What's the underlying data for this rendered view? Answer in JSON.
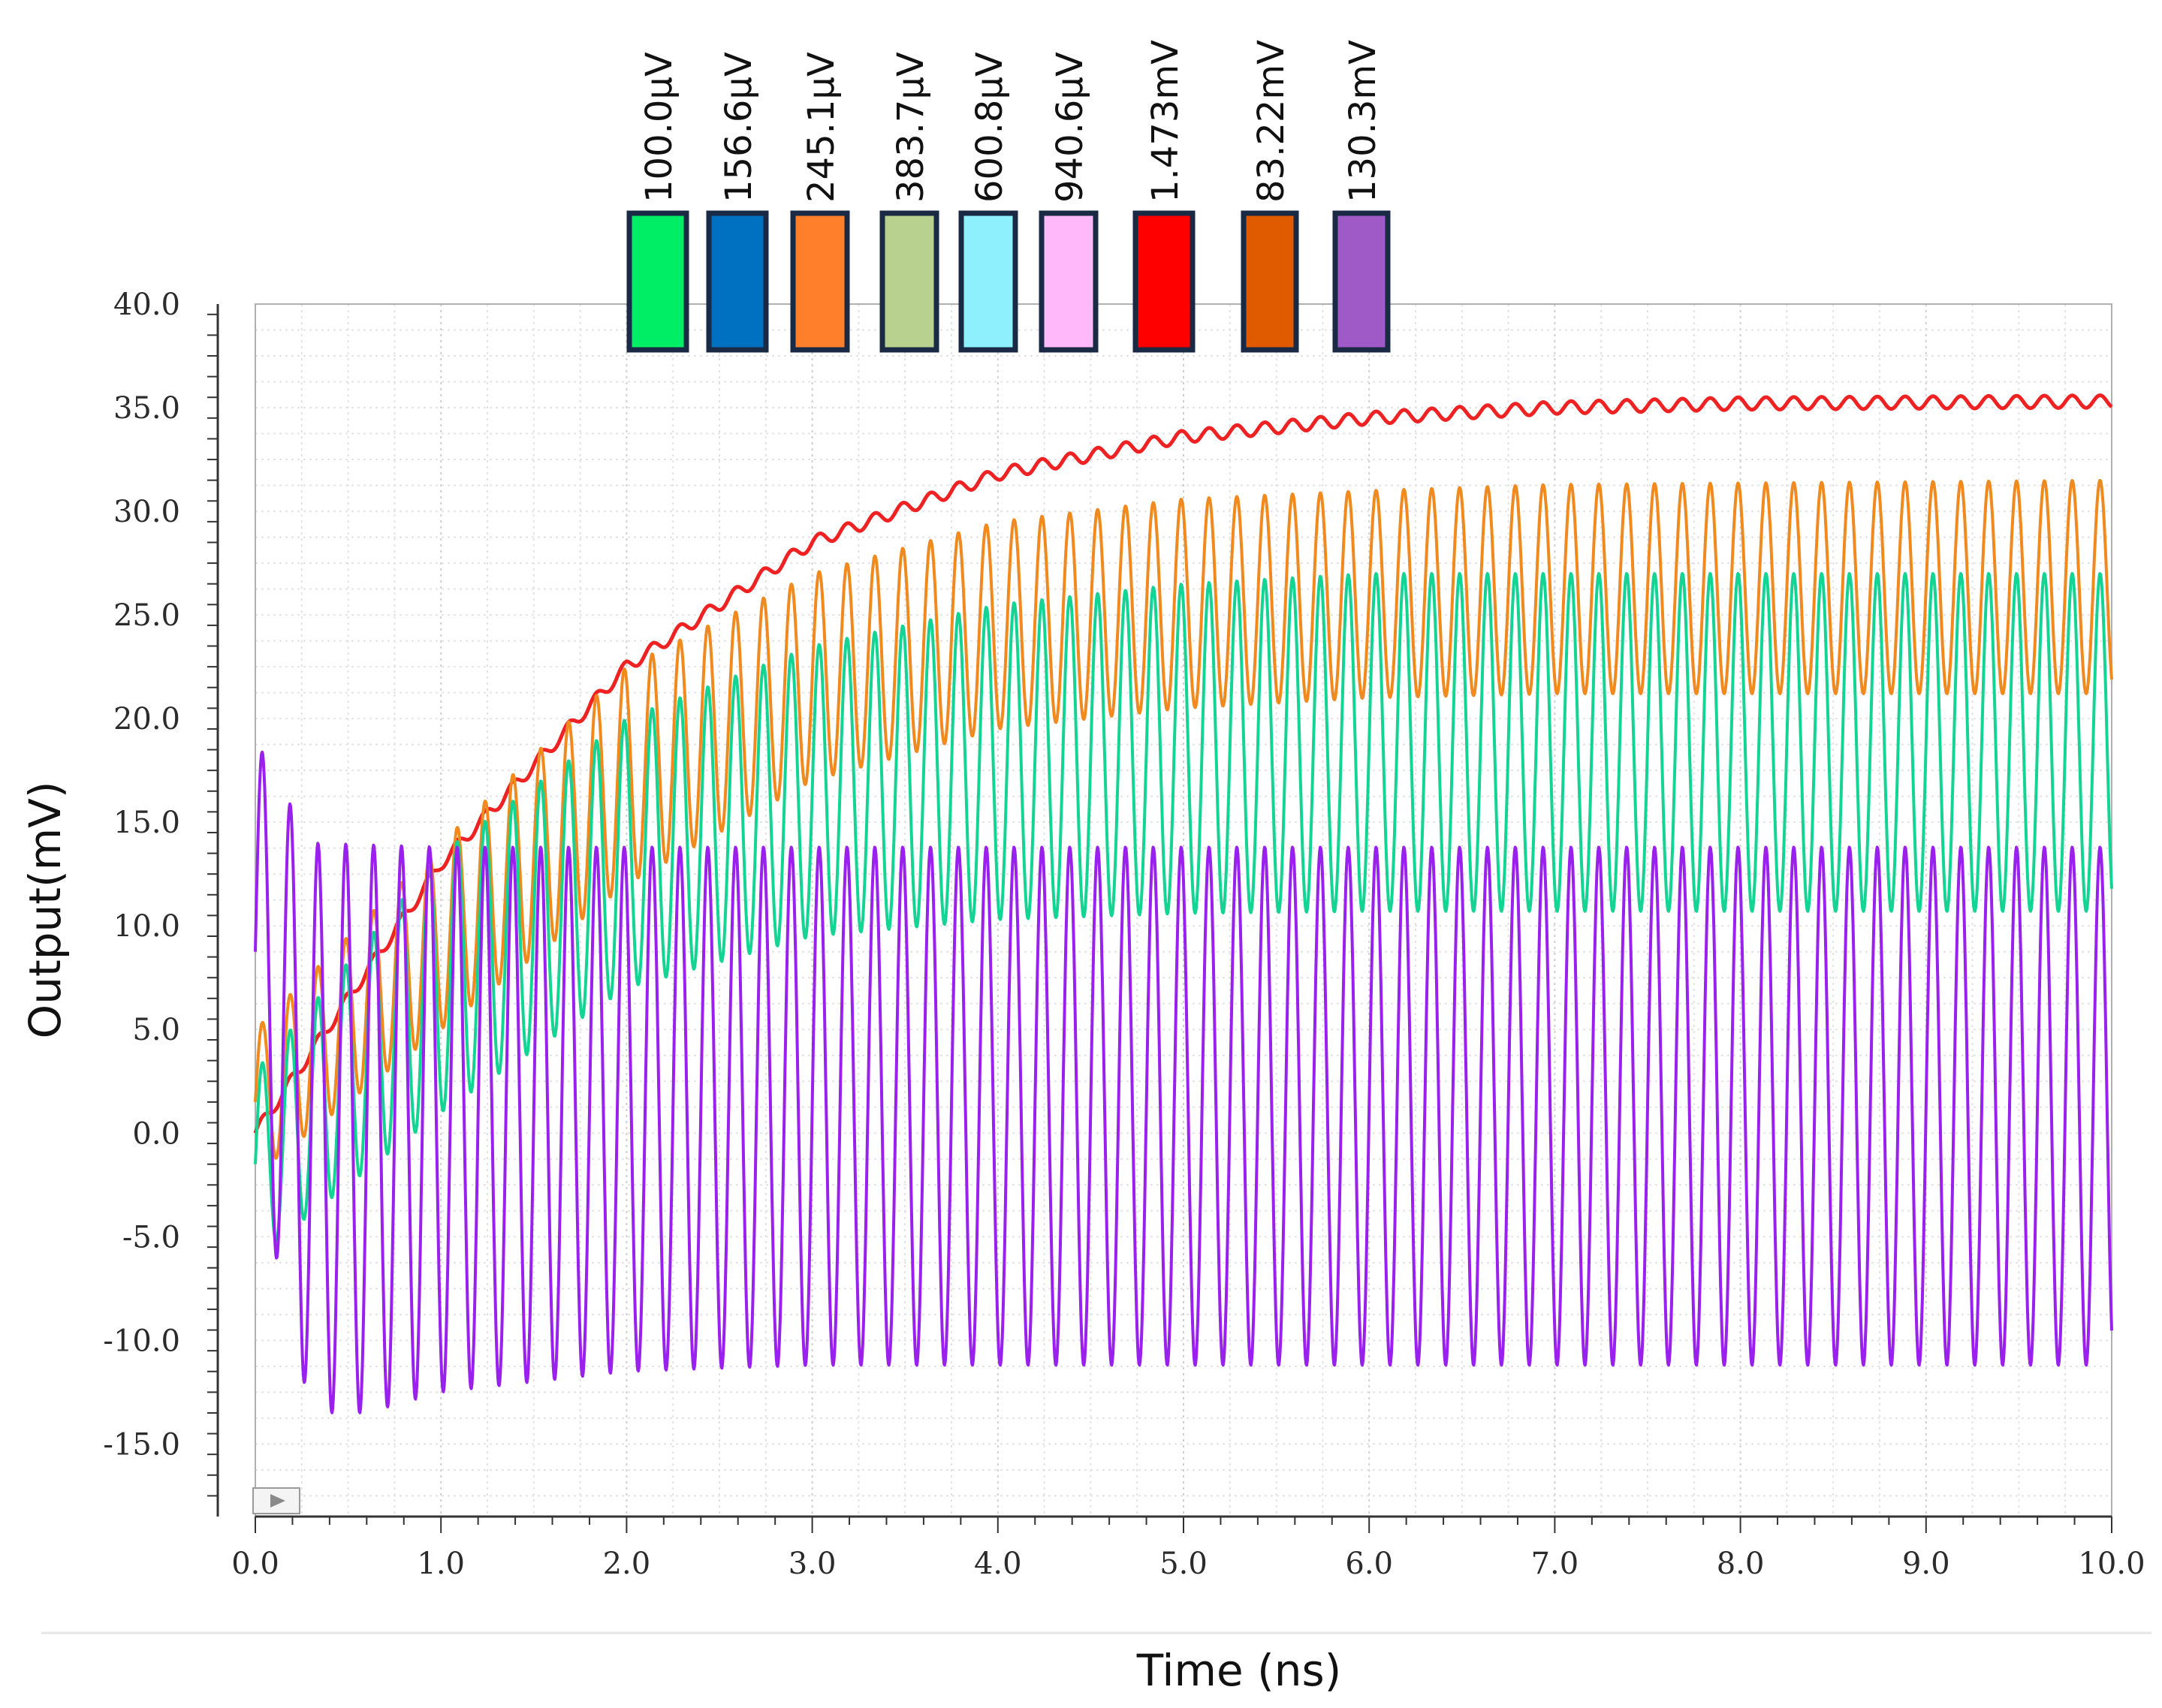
{
  "chart_data": {
    "type": "line",
    "xlabel": "Time (ns)",
    "ylabel": "Output(mV)",
    "xlim": [
      0.0,
      10.0
    ],
    "ylim": [
      -18.5,
      40.0
    ],
    "x_ticks": [
      "0.0",
      "1.0",
      "2.0",
      "3.0",
      "4.0",
      "5.0",
      "6.0",
      "7.0",
      "8.0",
      "9.0",
      "10.0"
    ],
    "y_ticks": [
      "40.0",
      "35.0",
      "30.0",
      "25.0",
      "20.0",
      "15.0",
      "10.0",
      "5.0",
      "0.0",
      "-5.0",
      "-10.0",
      "-15.0"
    ],
    "grid": true,
    "legend": {
      "placement": "top",
      "entries": [
        {
          "label": "100.0µV",
          "color": "#00ee66"
        },
        {
          "label": "156.6µV",
          "color": "#0070c0"
        },
        {
          "label": "245.1µV",
          "color": "#ff7f2a"
        },
        {
          "label": "383.7µV",
          "color": "#b9d18e"
        },
        {
          "label": "600.8µV",
          "color": "#8ef0fc"
        },
        {
          "label": "940.6µV",
          "color": "#ffb8fa"
        },
        {
          "label": "1.473mV",
          "color": "#ff0000"
        },
        {
          "label": "83.22mV",
          "color": "#e05a00"
        },
        {
          "label": "130.3mV",
          "color": "#a05ac8"
        }
      ]
    },
    "series": [
      {
        "color": "#ee2222",
        "kind": "smooth",
        "y0": 0.0,
        "y_final": 35.3,
        "tau_ns": 2.0,
        "ripple_mV": 0.3,
        "period_ns": 0.15,
        "points": [
          [
            0.0,
            0.0
          ],
          [
            1.0,
            13.0
          ],
          [
            2.0,
            22.5
          ],
          [
            3.0,
            28.5
          ],
          [
            4.0,
            31.8
          ],
          [
            5.0,
            33.6
          ],
          [
            6.0,
            34.5
          ],
          [
            7.0,
            35.0
          ],
          [
            8.0,
            35.2
          ],
          [
            10.0,
            35.3
          ]
        ]
      },
      {
        "color": "#f08a1e",
        "kind": "oscillation",
        "period_ns": 0.15,
        "upper": [
          [
            0.0,
            5.0
          ],
          [
            1.0,
            14.0
          ],
          [
            2.0,
            22.5
          ],
          [
            3.0,
            27.0
          ],
          [
            4.0,
            29.5
          ],
          [
            5.0,
            30.6
          ],
          [
            6.0,
            31.0
          ],
          [
            7.0,
            31.3
          ],
          [
            10.0,
            31.5
          ]
        ],
        "lower": [
          [
            0.0,
            -2.0
          ],
          [
            1.0,
            5.0
          ],
          [
            2.0,
            12.0
          ],
          [
            3.0,
            17.0
          ],
          [
            4.0,
            19.5
          ],
          [
            5.0,
            20.5
          ],
          [
            6.0,
            21.0
          ],
          [
            7.0,
            21.2
          ],
          [
            10.0,
            21.2
          ]
        ]
      },
      {
        "color": "#14d494",
        "kind": "oscillation",
        "period_ns": 0.15,
        "upper": [
          [
            0.0,
            3.0
          ],
          [
            1.0,
            13.5
          ],
          [
            2.0,
            20.0
          ],
          [
            3.0,
            23.5
          ],
          [
            4.0,
            25.5
          ],
          [
            5.0,
            26.5
          ],
          [
            6.0,
            27.0
          ],
          [
            10.0,
            27.0
          ]
        ],
        "lower": [
          [
            0.0,
            -6.0
          ],
          [
            1.0,
            1.0
          ],
          [
            2.0,
            7.0
          ],
          [
            3.0,
            9.5
          ],
          [
            4.0,
            10.3
          ],
          [
            5.0,
            10.6
          ],
          [
            6.0,
            10.7
          ],
          [
            10.0,
            10.7
          ]
        ]
      },
      {
        "color": "#9a20ee",
        "kind": "oscillation",
        "period_ns": 0.15,
        "upper": [
          [
            0.0,
            19.0
          ],
          [
            0.3,
            14.0
          ],
          [
            1.0,
            13.8
          ],
          [
            10.0,
            13.8
          ]
        ],
        "lower": [
          [
            0.0,
            -1.5
          ],
          [
            0.3,
            -13.5
          ],
          [
            0.6,
            -13.5
          ],
          [
            1.0,
            -12.5
          ],
          [
            2.0,
            -11.5
          ],
          [
            3.0,
            -11.2
          ],
          [
            10.0,
            -11.2
          ]
        ]
      }
    ]
  }
}
